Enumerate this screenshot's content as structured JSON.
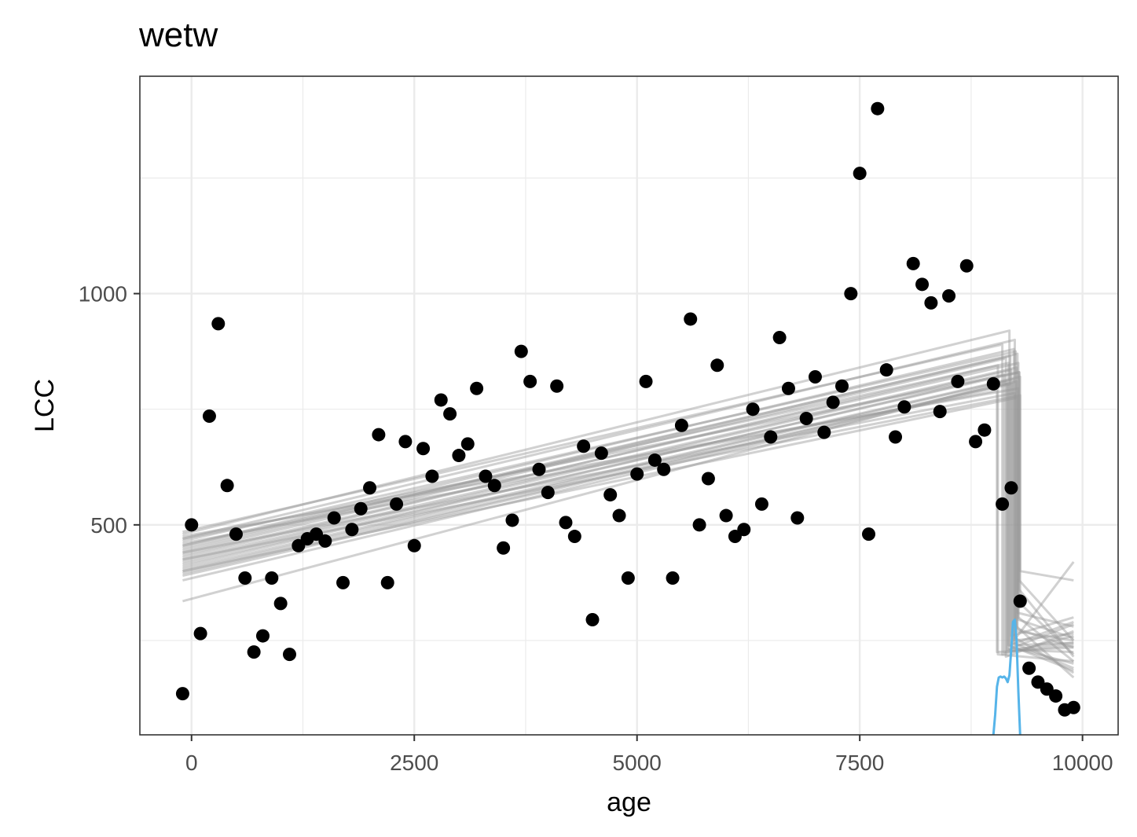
{
  "chart_data": {
    "type": "scatter",
    "title": "wetw",
    "xlabel": "age",
    "ylabel": "LCC",
    "xlim": [
      -580,
      10400
    ],
    "ylim": [
      46,
      1470
    ],
    "x_ticks": [
      0,
      2500,
      5000,
      7500,
      10000
    ],
    "x_tick_labels": [
      "0",
      "2500",
      "5000",
      "7500",
      "10000"
    ],
    "y_ticks": [
      500,
      1000
    ],
    "y_tick_labels": [
      "500",
      "1000"
    ],
    "grid": true,
    "colors": {
      "points": "#000000",
      "fit_lines": "#999999",
      "density": "#56b4e9",
      "grid": "#ebebeb",
      "panel_border": "#333333"
    },
    "points": [
      [
        -100,
        135
      ],
      [
        0,
        500
      ],
      [
        100,
        265
      ],
      [
        200,
        735
      ],
      [
        300,
        935
      ],
      [
        400,
        585
      ],
      [
        500,
        480
      ],
      [
        600,
        385
      ],
      [
        700,
        225
      ],
      [
        800,
        260
      ],
      [
        900,
        385
      ],
      [
        1000,
        330
      ],
      [
        1100,
        220
      ],
      [
        1200,
        455
      ],
      [
        1300,
        470
      ],
      [
        1400,
        480
      ],
      [
        1500,
        465
      ],
      [
        1600,
        515
      ],
      [
        1700,
        375
      ],
      [
        1800,
        490
      ],
      [
        1900,
        535
      ],
      [
        2000,
        580
      ],
      [
        2100,
        695
      ],
      [
        2200,
        375
      ],
      [
        2300,
        545
      ],
      [
        2400,
        680
      ],
      [
        2500,
        455
      ],
      [
        2600,
        665
      ],
      [
        2700,
        605
      ],
      [
        2800,
        770
      ],
      [
        2900,
        740
      ],
      [
        3000,
        650
      ],
      [
        3100,
        675
      ],
      [
        3200,
        795
      ],
      [
        3300,
        605
      ],
      [
        3400,
        585
      ],
      [
        3500,
        450
      ],
      [
        3600,
        510
      ],
      [
        3700,
        875
      ],
      [
        3800,
        810
      ],
      [
        3900,
        620
      ],
      [
        4000,
        570
      ],
      [
        4100,
        800
      ],
      [
        4200,
        505
      ],
      [
        4300,
        475
      ],
      [
        4400,
        670
      ],
      [
        4500,
        295
      ],
      [
        4600,
        655
      ],
      [
        4700,
        565
      ],
      [
        4800,
        520
      ],
      [
        4900,
        385
      ],
      [
        5000,
        610
      ],
      [
        5100,
        810
      ],
      [
        5200,
        640
      ],
      [
        5300,
        620
      ],
      [
        5400,
        385
      ],
      [
        5500,
        715
      ],
      [
        5600,
        945
      ],
      [
        5700,
        500
      ],
      [
        5800,
        600
      ],
      [
        5900,
        845
      ],
      [
        6000,
        520
      ],
      [
        6100,
        475
      ],
      [
        6200,
        490
      ],
      [
        6300,
        750
      ],
      [
        6400,
        545
      ],
      [
        6500,
        690
      ],
      [
        6600,
        905
      ],
      [
        6700,
        795
      ],
      [
        6800,
        515
      ],
      [
        6900,
        730
      ],
      [
        7000,
        820
      ],
      [
        7100,
        700
      ],
      [
        7200,
        765
      ],
      [
        7300,
        800
      ],
      [
        7400,
        1000
      ],
      [
        7500,
        1260
      ],
      [
        7600,
        480
      ],
      [
        7700,
        1400
      ],
      [
        7800,
        835
      ],
      [
        7900,
        690
      ],
      [
        8000,
        755
      ],
      [
        8100,
        1065
      ],
      [
        8200,
        1020
      ],
      [
        8300,
        980
      ],
      [
        8400,
        745
      ],
      [
        8500,
        995
      ],
      [
        8600,
        810
      ],
      [
        8700,
        1060
      ],
      [
        8800,
        680
      ],
      [
        8900,
        705
      ],
      [
        9000,
        805
      ],
      [
        9100,
        545
      ],
      [
        9200,
        580
      ],
      [
        9300,
        335
      ],
      [
        9400,
        190
      ],
      [
        9500,
        160
      ],
      [
        9600,
        145
      ],
      [
        9700,
        130
      ],
      [
        9800,
        100
      ],
      [
        9900,
        105
      ]
    ],
    "fit_lines": [
      {
        "y0": 480,
        "y1": 920,
        "bx": 9180,
        "y2": 232,
        "y3": 285
      },
      {
        "y0": 470,
        "y1": 900,
        "bx": 9240,
        "y2": 240,
        "y3": 245
      },
      {
        "y0": 455,
        "y1": 880,
        "bx": 9230,
        "y2": 250,
        "y3": 420
      },
      {
        "y0": 445,
        "y1": 870,
        "bx": 9270,
        "y2": 275,
        "y3": 235
      },
      {
        "y0": 440,
        "y1": 860,
        "bx": 9140,
        "y2": 215,
        "y3": 270
      },
      {
        "y0": 435,
        "y1": 850,
        "bx": 9280,
        "y2": 295,
        "y3": 255
      },
      {
        "y0": 430,
        "y1": 845,
        "bx": 9050,
        "y2": 220,
        "y3": 205
      },
      {
        "y0": 425,
        "y1": 840,
        "bx": 9260,
        "y2": 280,
        "y3": 170
      },
      {
        "y0": 420,
        "y1": 835,
        "bx": 9200,
        "y2": 260,
        "y3": 300
      },
      {
        "y0": 415,
        "y1": 830,
        "bx": 9290,
        "y2": 360,
        "y3": 215
      },
      {
        "y0": 410,
        "y1": 825,
        "bx": 9120,
        "y2": 225,
        "y3": 240
      },
      {
        "y0": 405,
        "y1": 820,
        "bx": 9300,
        "y2": 400,
        "y3": 380
      },
      {
        "y0": 400,
        "y1": 815,
        "bx": 9220,
        "y2": 245,
        "y3": 190
      },
      {
        "y0": 395,
        "y1": 810,
        "bx": 9260,
        "y2": 270,
        "y3": 250
      },
      {
        "y0": 390,
        "y1": 805,
        "bx": 9160,
        "y2": 230,
        "y3": 225
      },
      {
        "y0": 485,
        "y1": 890,
        "bx": 9100,
        "y2": 220,
        "y3": 260
      },
      {
        "y0": 465,
        "y1": 875,
        "bx": 9250,
        "y2": 255,
        "y3": 180
      },
      {
        "y0": 450,
        "y1": 865,
        "bx": 9190,
        "y2": 240,
        "y3": 290
      },
      {
        "y0": 475,
        "y1": 795,
        "bx": 9280,
        "y2": 300,
        "y3": 205
      },
      {
        "y0": 460,
        "y1": 790,
        "bx": 9040,
        "y2": 225,
        "y3": 235
      },
      {
        "y0": 440,
        "y1": 785,
        "bx": 9240,
        "y2": 250,
        "y3": 265
      },
      {
        "y0": 425,
        "y1": 780,
        "bx": 9300,
        "y2": 330,
        "y3": 220
      },
      {
        "y0": 400,
        "y1": 775,
        "bx": 9270,
        "y2": 310,
        "y3": 280
      },
      {
        "y0": 380,
        "y1": 805,
        "bx": 9210,
        "y2": 235,
        "y3": 200
      },
      {
        "y0": 335,
        "y1": 810,
        "bx": 9150,
        "y2": 230,
        "y3": 245
      },
      {
        "y0": 470,
        "y1": 830,
        "bx": 9290,
        "y2": 380,
        "y3": 250
      },
      {
        "y0": 455,
        "y1": 850,
        "bx": 9170,
        "y2": 240,
        "y3": 185
      }
    ],
    "fit_line_x_start": -100,
    "fit_line_x_end": 9900,
    "density_curve": [
      [
        9000,
        46
      ],
      [
        9020,
        90
      ],
      [
        9040,
        150
      ],
      [
        9060,
        170
      ],
      [
        9080,
        172
      ],
      [
        9100,
        170
      ],
      [
        9120,
        172
      ],
      [
        9140,
        168
      ],
      [
        9160,
        160
      ],
      [
        9180,
        175
      ],
      [
        9200,
        230
      ],
      [
        9220,
        290
      ],
      [
        9240,
        295
      ],
      [
        9260,
        250
      ],
      [
        9280,
        140
      ],
      [
        9300,
        46
      ]
    ]
  }
}
